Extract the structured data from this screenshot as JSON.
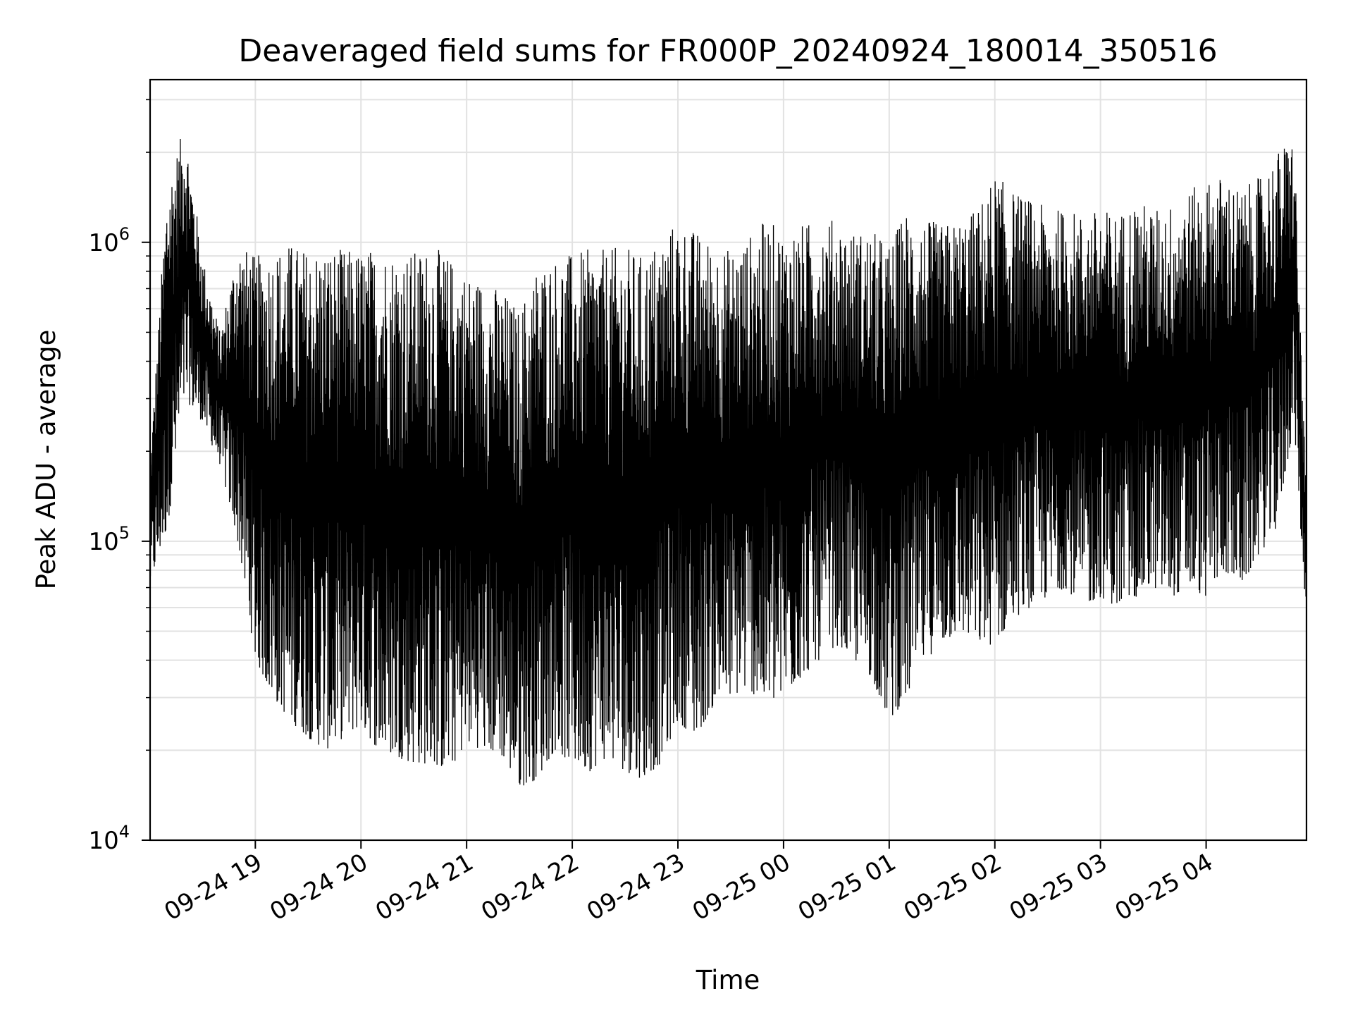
{
  "chart_data": {
    "type": "line",
    "title": "Deaveraged field sums for FR000P_20240924_180014_350516",
    "xlabel": "Time",
    "ylabel": "Peak ADU - average",
    "yscale": "log",
    "ylim": [
      10000,
      3500000
    ],
    "xlim": [
      "2024-09-24 18:00:14",
      "2024-09-25 04:57:00"
    ],
    "grid": true,
    "x_ticks": [
      {
        "t": "2024-09-24 19:00",
        "label": "09-24 19"
      },
      {
        "t": "2024-09-24 20:00",
        "label": "09-24 20"
      },
      {
        "t": "2024-09-24 21:00",
        "label": "09-24 21"
      },
      {
        "t": "2024-09-24 22:00",
        "label": "09-24 22"
      },
      {
        "t": "2024-09-24 23:00",
        "label": "09-24 23"
      },
      {
        "t": "2024-09-25 00:00",
        "label": "09-25 00"
      },
      {
        "t": "2024-09-25 01:00",
        "label": "09-25 01"
      },
      {
        "t": "2024-09-25 02:00",
        "label": "09-25 02"
      },
      {
        "t": "2024-09-25 03:00",
        "label": "09-25 03"
      },
      {
        "t": "2024-09-25 04:00",
        "label": "09-25 04"
      }
    ],
    "y_ticks": [
      {
        "value": 10000,
        "base": "10",
        "exp": "4"
      },
      {
        "value": 100000,
        "base": "10",
        "exp": "5"
      },
      {
        "value": 1000000,
        "base": "10",
        "exp": "6"
      }
    ],
    "line_color": "#000000",
    "series": [
      {
        "x": [
          "2024-09-24 18:00",
          "2024-09-24 18:10",
          "2024-09-24 18:20",
          "2024-09-24 18:30",
          "2024-09-24 18:40",
          "2024-09-24 18:50",
          "2024-09-24 19:00",
          "2024-09-24 19:10",
          "2024-09-24 19:20",
          "2024-09-24 19:30",
          "2024-09-24 19:40",
          "2024-09-24 19:50",
          "2024-09-24 20:00",
          "2024-09-24 20:10",
          "2024-09-24 20:20",
          "2024-09-24 20:30",
          "2024-09-24 20:40",
          "2024-09-24 20:50",
          "2024-09-24 21:00",
          "2024-09-24 21:10",
          "2024-09-24 21:20",
          "2024-09-24 21:30",
          "2024-09-24 21:40",
          "2024-09-24 21:50",
          "2024-09-24 22:00",
          "2024-09-24 22:10",
          "2024-09-24 22:20",
          "2024-09-24 22:30",
          "2024-09-24 22:40",
          "2024-09-24 22:50",
          "2024-09-24 23:00",
          "2024-09-24 23:10",
          "2024-09-24 23:20",
          "2024-09-24 23:30",
          "2024-09-24 23:40",
          "2024-09-24 23:50",
          "2024-09-25 00:00",
          "2024-09-25 00:10",
          "2024-09-25 00:20",
          "2024-09-25 00:30",
          "2024-09-25 00:40",
          "2024-09-25 00:50",
          "2024-09-25 01:00",
          "2024-09-25 01:10",
          "2024-09-25 01:20",
          "2024-09-25 01:30",
          "2024-09-25 01:40",
          "2024-09-25 01:50",
          "2024-09-25 02:00",
          "2024-09-25 02:10",
          "2024-09-25 02:20",
          "2024-09-25 02:30",
          "2024-09-25 02:40",
          "2024-09-25 02:50",
          "2024-09-25 03:00",
          "2024-09-25 03:10",
          "2024-09-25 03:20",
          "2024-09-25 03:30",
          "2024-09-25 03:40",
          "2024-09-25 03:50",
          "2024-09-25 04:00",
          "2024-09-25 04:10",
          "2024-09-25 04:20",
          "2024-09-25 04:30",
          "2024-09-25 04:40",
          "2024-09-25 04:50",
          "2024-09-25 04:56"
        ],
        "upper": [
          180000,
          1600000,
          2500000,
          900000,
          500000,
          1000000,
          900000,
          950000,
          1000000,
          950000,
          980000,
          950000,
          950000,
          960000,
          950000,
          940000,
          980000,
          900000,
          800000,
          750000,
          700000,
          600000,
          850000,
          900000,
          920000,
          950000,
          950000,
          980000,
          900000,
          1050000,
          1200000,
          1100000,
          1000000,
          950000,
          1050000,
          1200000,
          1100000,
          1150000,
          1200000,
          1200000,
          1100000,
          1100000,
          1000000,
          1300000,
          1200000,
          1150000,
          1200000,
          1300000,
          1700000,
          1500000,
          1400000,
          1300000,
          1300000,
          1250000,
          1300000,
          1250000,
          1400000,
          1300000,
          1350000,
          1500000,
          1600000,
          1700000,
          1500000,
          1650000,
          2000000,
          2300000,
          200000
        ],
        "lower": [
          70000,
          110000,
          300000,
          250000,
          180000,
          100000,
          40000,
          30000,
          25000,
          22000,
          20000,
          22000,
          24000,
          20000,
          19000,
          18000,
          18000,
          17000,
          21000,
          20000,
          19000,
          15000,
          16000,
          20000,
          18000,
          17000,
          19000,
          17000,
          16000,
          18000,
          25000,
          22000,
          28000,
          30000,
          32000,
          28000,
          30000,
          35000,
          40000,
          45000,
          40000,
          35000,
          25000,
          30000,
          40000,
          45000,
          50000,
          45000,
          45000,
          55000,
          60000,
          65000,
          70000,
          60000,
          65000,
          60000,
          65000,
          70000,
          65000,
          70000,
          65000,
          80000,
          70000,
          90000,
          110000,
          250000,
          65000
        ]
      }
    ]
  }
}
